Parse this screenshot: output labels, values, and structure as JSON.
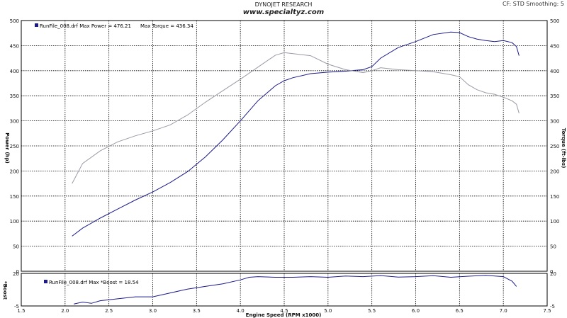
{
  "header": {
    "title": "DYNOJET RESEARCH",
    "site": "www.specialtyz.com",
    "cf": "CF: STD  Smoothing: 5"
  },
  "legend_main": {
    "text1": "RunFile_008.drf Max Power = 476.21",
    "text2": "Max Torque = 436.34"
  },
  "legend_boost": {
    "text": "RunFile_008.drf Max *Boost = 18.54"
  },
  "colors": {
    "power": "#1a1a8c",
    "torque": "#9a9aa6",
    "boost": "#1a1a8c",
    "grid": "#000000"
  },
  "chart_data": [
    {
      "type": "line",
      "xlabel": "Engine Speed (RPM x1000)",
      "ylabel": "Power (hp)",
      "y2label": "Torque (ft-lbs)",
      "xlim": [
        1.5,
        7.5
      ],
      "ylim": [
        0,
        500
      ],
      "xticks": [
        1.5,
        2.0,
        2.5,
        3.0,
        3.5,
        4.0,
        4.5,
        5.0,
        5.5,
        6.0,
        6.5,
        7.0,
        7.5
      ],
      "yticks": [
        0,
        50,
        100,
        150,
        200,
        250,
        300,
        350,
        400,
        450,
        500
      ],
      "series": [
        {
          "name": "Power",
          "x": [
            2.08,
            2.2,
            2.4,
            2.6,
            2.8,
            3.0,
            3.2,
            3.4,
            3.6,
            3.8,
            4.0,
            4.2,
            4.4,
            4.5,
            4.6,
            4.8,
            5.0,
            5.2,
            5.4,
            5.5,
            5.6,
            5.8,
            6.0,
            6.2,
            6.4,
            6.5,
            6.6,
            6.7,
            6.8,
            6.9,
            7.0,
            7.1,
            7.15,
            7.18
          ],
          "y": [
            70,
            86,
            106,
            124,
            142,
            158,
            177,
            199,
            228,
            262,
            300,
            340,
            370,
            380,
            386,
            394,
            397,
            399,
            402,
            408,
            425,
            446,
            458,
            472,
            477,
            476,
            468,
            463,
            460,
            458,
            460,
            456,
            448,
            430
          ]
        },
        {
          "name": "Torque",
          "x": [
            2.08,
            2.2,
            2.4,
            2.6,
            2.8,
            3.0,
            3.2,
            3.4,
            3.6,
            3.8,
            4.0,
            4.2,
            4.4,
            4.5,
            4.6,
            4.8,
            5.0,
            5.2,
            5.4,
            5.5,
            5.6,
            5.8,
            6.0,
            6.2,
            6.4,
            6.5,
            6.6,
            6.7,
            6.8,
            6.9,
            7.0,
            7.1,
            7.15,
            7.18
          ],
          "y": [
            175,
            215,
            240,
            258,
            270,
            280,
            292,
            312,
            337,
            360,
            383,
            407,
            431,
            436,
            434,
            430,
            413,
            402,
            396,
            400,
            406,
            402,
            400,
            398,
            392,
            388,
            372,
            362,
            356,
            353,
            347,
            340,
            333,
            315
          ]
        }
      ]
    },
    {
      "type": "line",
      "xlabel": "Engine Speed (RPM x1000)",
      "ylabel": "*Boost",
      "xlim": [
        1.5,
        7.5
      ],
      "ylim": [
        -5,
        20
      ],
      "yticks": [
        -5,
        20
      ],
      "series": [
        {
          "name": "Boost",
          "x": [
            2.1,
            2.2,
            2.3,
            2.4,
            2.6,
            2.8,
            3.0,
            3.2,
            3.4,
            3.6,
            3.8,
            4.0,
            4.1,
            4.2,
            4.4,
            4.6,
            4.8,
            5.0,
            5.2,
            5.4,
            5.6,
            5.8,
            6.0,
            6.2,
            6.4,
            6.6,
            6.8,
            7.0,
            7.1,
            7.15
          ],
          "y": [
            -3.5,
            -2,
            -3,
            -1,
            0.5,
            2,
            2,
            5,
            8,
            10,
            12,
            15,
            17,
            17.5,
            17,
            17,
            17.5,
            17,
            18,
            17.5,
            18.3,
            17.2,
            17.5,
            18.2,
            17,
            17.8,
            18.5,
            17.5,
            14,
            10
          ]
        }
      ]
    }
  ]
}
